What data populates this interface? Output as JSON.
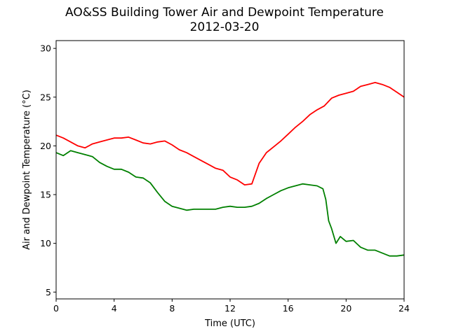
{
  "chart_data": {
    "type": "line",
    "title": "AO&SS Building Tower Air and Dewpoint Temperature",
    "subtitle": "2012-03-20",
    "xlabel": "Time (UTC)",
    "ylabel": "Air and Dewpoint Temperature (°C)",
    "xlim": [
      0,
      24
    ],
    "ylim": [
      4.3,
      30.8
    ],
    "xticks": [
      0,
      4,
      8,
      12,
      16,
      20,
      24
    ],
    "yticks": [
      5,
      10,
      15,
      20,
      25,
      30
    ],
    "grid": false,
    "series": [
      {
        "color": "#ff0000",
        "x": [
          0,
          0.5,
          1,
          1.5,
          2,
          2.5,
          3,
          3.5,
          4,
          4.5,
          5,
          5.5,
          6,
          6.5,
          7,
          7.5,
          8,
          8.5,
          9,
          9.5,
          10,
          10.5,
          11,
          11.5,
          12,
          12.5,
          13,
          13.5,
          14,
          14.5,
          15,
          15.5,
          16,
          16.5,
          17,
          17.5,
          18,
          18.5,
          19,
          19.5,
          20,
          20.5,
          21,
          21.5,
          22,
          22.5,
          23,
          23.5,
          24
        ],
        "y": [
          21.1,
          20.8,
          20.4,
          20.0,
          19.8,
          20.2,
          20.4,
          20.6,
          20.8,
          20.8,
          20.9,
          20.6,
          20.3,
          20.2,
          20.4,
          20.5,
          20.1,
          19.6,
          19.3,
          18.9,
          18.5,
          18.1,
          17.7,
          17.5,
          16.8,
          16.5,
          16.0,
          16.1,
          18.2,
          19.3,
          19.9,
          20.5,
          21.2,
          21.9,
          22.5,
          23.2,
          23.7,
          24.1,
          24.9,
          25.2,
          25.4,
          25.6,
          26.1,
          26.3,
          26.5,
          26.3,
          26.0,
          25.5,
          25.0
        ]
      },
      {
        "color": "#008000",
        "x": [
          0,
          0.5,
          1,
          1.5,
          2,
          2.5,
          3,
          3.5,
          4,
          4.5,
          5,
          5.5,
          6,
          6.5,
          7,
          7.5,
          8,
          8.5,
          9,
          9.5,
          10,
          10.5,
          11,
          11.5,
          12,
          12.5,
          13,
          13.5,
          14,
          14.5,
          15,
          15.5,
          16,
          16.5,
          17,
          17.5,
          18,
          18.4,
          18.6,
          18.8,
          19,
          19.3,
          19.6,
          20,
          20.5,
          21,
          21.5,
          22,
          22.5,
          23,
          23.5,
          24
        ],
        "y": [
          19.3,
          19.0,
          19.5,
          19.3,
          19.1,
          18.9,
          18.3,
          17.9,
          17.6,
          17.6,
          17.3,
          16.8,
          16.7,
          16.2,
          15.2,
          14.3,
          13.8,
          13.6,
          13.4,
          13.5,
          13.5,
          13.5,
          13.5,
          13.7,
          13.8,
          13.7,
          13.7,
          13.8,
          14.1,
          14.6,
          15.0,
          15.4,
          15.7,
          15.9,
          16.1,
          16.0,
          15.9,
          15.6,
          14.5,
          12.3,
          11.5,
          10.0,
          10.7,
          10.2,
          10.3,
          9.6,
          9.3,
          9.3,
          9.0,
          8.7,
          8.7,
          8.8
        ]
      }
    ]
  }
}
